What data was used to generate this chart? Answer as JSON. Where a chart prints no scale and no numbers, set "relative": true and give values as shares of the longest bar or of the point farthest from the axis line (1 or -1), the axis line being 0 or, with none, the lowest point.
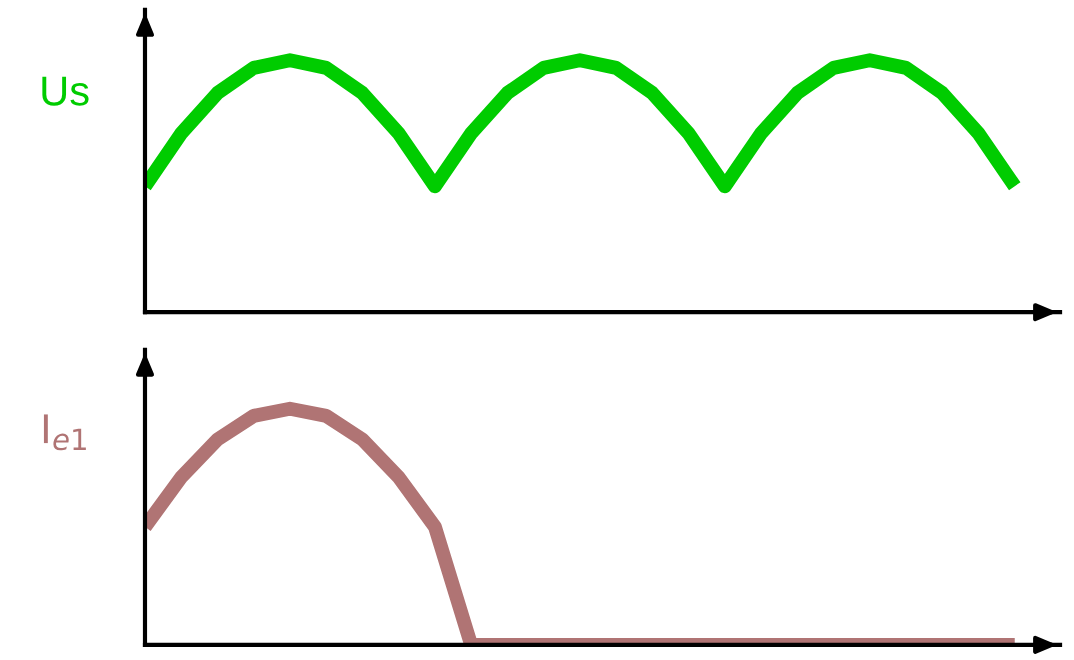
{
  "chart_data": [
    {
      "type": "line",
      "ylabel": "Us",
      "relative": true,
      "grid": false,
      "legend": false,
      "line_style": "solid",
      "categories": [
        null,
        null,
        null,
        null,
        null,
        null,
        null,
        null,
        null,
        null,
        null,
        null,
        null,
        null,
        null,
        null,
        null,
        null,
        null,
        null,
        null,
        null,
        null,
        null,
        null,
        null
      ],
      "series": [
        {
          "color": "#00cc00",
          "values": [
            0.5,
            0.71,
            0.87,
            0.97,
            1,
            0.97,
            0.87,
            0.71,
            0.5,
            0.71,
            0.87,
            0.97,
            1,
            0.97,
            0.87,
            0.71,
            0.5,
            0.71,
            0.87,
            0.97,
            1,
            0.97,
            0.87,
            0.71,
            0.5,
            null
          ]
        }
      ]
    },
    {
      "type": "line",
      "ylabel": "I$_{e1}$",
      "relative": true,
      "grid": false,
      "legend": false,
      "line_style": "solid",
      "categories": [
        null,
        null,
        null,
        null,
        null,
        null,
        null,
        null,
        null,
        null,
        null,
        null,
        null,
        null,
        null,
        null,
        null,
        null,
        null,
        null,
        null,
        null,
        null,
        null,
        null,
        null
      ],
      "series": [
        {
          "color": "#b07474",
          "values": [
            0.5,
            0.71,
            0.87,
            0.97,
            1,
            0.97,
            0.87,
            0.71,
            0.5,
            0,
            0,
            0,
            0,
            0,
            0,
            0,
            0,
            0,
            0,
            0,
            0,
            0,
            0,
            0,
            0,
            null
          ]
        }
      ]
    }
  ]
}
